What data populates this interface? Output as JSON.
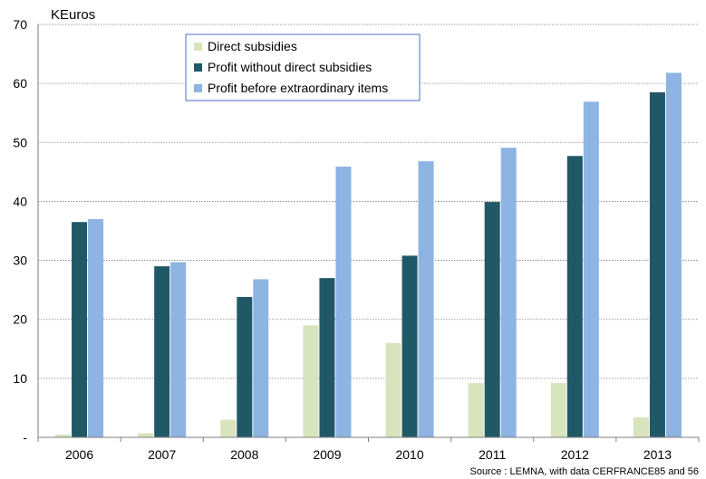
{
  "chart_data": {
    "type": "bar",
    "ylabel": "KEuros",
    "ylim": [
      0,
      70
    ],
    "yticks": [
      0,
      10,
      20,
      30,
      40,
      50,
      60,
      70
    ],
    "ytick_labels": [
      "-",
      "10",
      "20",
      "30",
      "40",
      "50",
      "60",
      "70"
    ],
    "grid": true,
    "legend_position": "top-center",
    "categories": [
      "2006",
      "2007",
      "2008",
      "2009",
      "2010",
      "2011",
      "2012",
      "2013"
    ],
    "series": [
      {
        "name": "Direct subsidies",
        "color": "#d7e4bd",
        "values": [
          0.5,
          0.7,
          3.0,
          19.0,
          16.0,
          9.2,
          9.2,
          3.4
        ]
      },
      {
        "name": "Profit without direct subsidies",
        "color": "#215867",
        "values": [
          36.5,
          29.0,
          23.8,
          27.0,
          30.8,
          39.9,
          47.7,
          58.5
        ]
      },
      {
        "name": "Profit before extraordinary items",
        "color": "#8eb4e3",
        "values": [
          37.0,
          29.7,
          26.8,
          45.9,
          46.8,
          49.1,
          56.9,
          61.8
        ]
      }
    ],
    "source": "Source : LEMNA, with data CERFRANCE85 and 56"
  }
}
